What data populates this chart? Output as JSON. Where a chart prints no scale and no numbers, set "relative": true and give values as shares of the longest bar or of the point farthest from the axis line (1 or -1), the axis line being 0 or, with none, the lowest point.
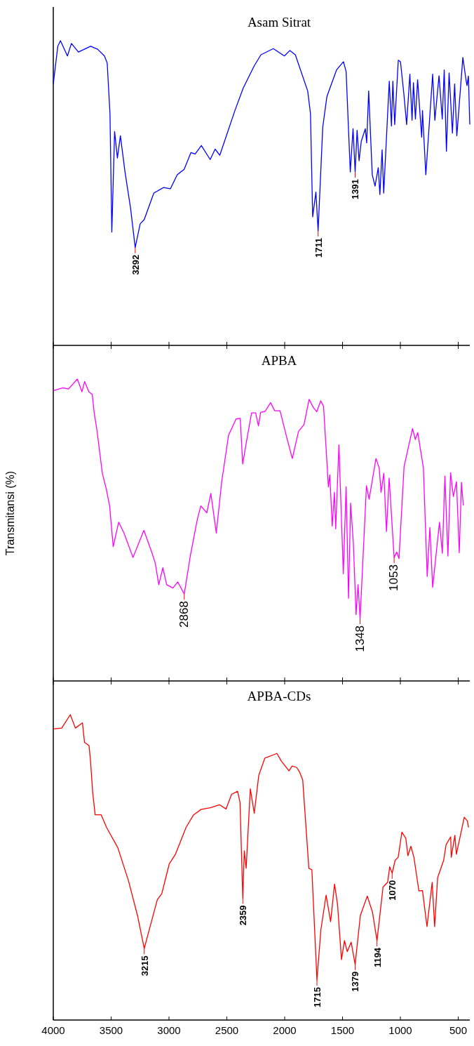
{
  "chart_data": [
    {
      "type": "line",
      "title": "Asam Sitrat",
      "relative": true,
      "xlim": [
        4000,
        400
      ],
      "xticks": [
        4000,
        3500,
        3000,
        2500,
        2000,
        1500,
        1000,
        500
      ],
      "tick_labels": false,
      "x": [
        4000,
        3961,
        3938,
        3878,
        3843,
        3783,
        3677,
        3617,
        3558,
        3534,
        3510,
        3494,
        3470,
        3446,
        3420,
        3380,
        3332,
        3292,
        3249,
        3214,
        3131,
        3047,
        2988,
        2929,
        2869,
        2810,
        2774,
        2720,
        2644,
        2601,
        2561,
        2430,
        2359,
        2264,
        2205,
        2098,
        2003,
        1955,
        1908,
        1801,
        1777,
        1758,
        1730,
        1711,
        1671,
        1635,
        1552,
        1492,
        1469,
        1433,
        1409,
        1391,
        1374,
        1357,
        1338,
        1303,
        1291,
        1274,
        1243,
        1219,
        1191,
        1177,
        1158,
        1144,
        1096,
        1077,
        1065,
        1049,
        1018,
        999,
        970,
        946,
        918,
        899,
        887,
        870,
        851,
        816,
        809,
        780,
        721,
        702,
        666,
        638,
        621,
        602,
        579,
        550,
        531,
        512,
        460,
        431,
        424,
        412,
        400
      ],
      "series": [
        {
          "color": "#0000ff",
          "values": [
            0.858,
            0.982,
            1.0,
            0.95,
            0.991,
            0.963,
            0.982,
            0.972,
            0.95,
            0.927,
            0.761,
            0.372,
            0.702,
            0.615,
            0.688,
            0.569,
            0.45,
            0.321,
            0.399,
            0.413,
            0.5,
            0.518,
            0.514,
            0.56,
            0.578,
            0.633,
            0.628,
            0.656,
            0.61,
            0.644,
            0.624,
            0.771,
            0.844,
            0.917,
            0.954,
            0.974,
            0.95,
            0.968,
            0.954,
            0.835,
            0.761,
            0.422,
            0.503,
            0.376,
            0.716,
            0.817,
            0.904,
            0.931,
            0.899,
            0.569,
            0.711,
            0.569,
            0.706,
            0.606,
            0.67,
            0.711,
            0.665,
            0.835,
            0.56,
            0.523,
            0.583,
            0.495,
            0.642,
            0.5,
            0.867,
            0.72,
            0.867,
            0.725,
            0.936,
            0.931,
            0.826,
            0.725,
            0.89,
            0.739,
            0.862,
            0.743,
            0.872,
            0.683,
            0.771,
            0.56,
            0.89,
            0.739,
            0.885,
            0.743,
            0.904,
            0.637,
            0.894,
            0.697,
            0.858,
            0.688,
            0.945,
            0.867,
            0.853,
            0.884,
            0.725
          ]
        }
      ],
      "annotations": [
        {
          "text": "3292",
          "x": 3292,
          "y": 0.321
        },
        {
          "text": "1711",
          "x": 1711,
          "y": 0.376
        },
        {
          "text": "1391",
          "x": 1391,
          "y": 0.569
        }
      ]
    },
    {
      "type": "line",
      "title": "APBA",
      "ylabel": "Transmitansi (%)",
      "relative": true,
      "xlim": [
        4000,
        400
      ],
      "xticks": [
        4000,
        3500,
        3000,
        2500,
        2000,
        1500,
        1000,
        500
      ],
      "tick_labels": false,
      "x": [
        3998,
        3916,
        3869,
        3792,
        3752,
        3729,
        3693,
        3663,
        3647,
        3623,
        3576,
        3541,
        3513,
        3482,
        3435,
        3389,
        3311,
        3217,
        3154,
        3119,
        3088,
        3053,
        3020,
        2966,
        2924,
        2868,
        2814,
        2755,
        2725,
        2673,
        2638,
        2591,
        2544,
        2485,
        2420,
        2384,
        2363,
        2333,
        2286,
        2251,
        2227,
        2208,
        2169,
        2122,
        2086,
        2040,
        1981,
        1934,
        1880,
        1833,
        1789,
        1753,
        1723,
        1688,
        1664,
        1622,
        1610,
        1589,
        1570,
        1559,
        1531,
        1493,
        1469,
        1448,
        1430,
        1406,
        1383,
        1366,
        1348,
        1293,
        1270,
        1211,
        1183,
        1167,
        1143,
        1120,
        1097,
        1054,
        1031,
        1012,
        968,
        895,
        871,
        850,
        801,
        768,
        745,
        721,
        662,
        637,
        615,
        589,
        566,
        542,
        515,
        491,
        472,
        456
      ],
      "series": [
        {
          "color": "#ff00ff",
          "values": [
            0.962,
            0.971,
            0.967,
            1.0,
            0.958,
            0.992,
            0.958,
            0.949,
            0.89,
            0.832,
            0.688,
            0.634,
            0.58,
            0.445,
            0.526,
            0.49,
            0.409,
            0.499,
            0.432,
            0.391,
            0.319,
            0.375,
            0.319,
            0.308,
            0.328,
            0.288,
            0.418,
            0.535,
            0.58,
            0.557,
            0.621,
            0.49,
            0.661,
            0.814,
            0.868,
            0.87,
            0.719,
            0.787,
            0.888,
            0.888,
            0.845,
            0.89,
            0.893,
            0.922,
            0.895,
            0.895,
            0.805,
            0.737,
            0.827,
            0.849,
            0.933,
            0.906,
            0.892,
            0.928,
            0.91,
            0.643,
            0.683,
            0.513,
            0.625,
            0.504,
            0.782,
            0.355,
            0.643,
            0.274,
            0.589,
            0.454,
            0.22,
            0.319,
            0.207,
            0.647,
            0.602,
            0.737,
            0.706,
            0.625,
            0.688,
            0.495,
            0.672,
            0.409,
            0.427,
            0.405,
            0.71,
            0.836,
            0.8,
            0.823,
            0.706,
            0.346,
            0.508,
            0.31,
            0.526,
            0.423,
            0.679,
            0.414,
            0.69,
            0.611,
            0.66,
            0.425,
            0.658,
            0.581
          ]
        }
      ],
      "annotations": [
        {
          "text": "2868",
          "x": 2868,
          "y": 0.288
        },
        {
          "text": "1348",
          "x": 1348,
          "y": 0.207
        },
        {
          "text": "1053",
          "x": 1054,
          "y": 0.409
        }
      ]
    },
    {
      "type": "line",
      "title": "APBA-CDs",
      "relative": true,
      "xlim": [
        4000,
        400
      ],
      "xticks": [
        4000,
        3500,
        3000,
        2500,
        2000,
        1500,
        1000,
        500
      ],
      "tick_labels": "x",
      "x": [
        4000,
        3927,
        3853,
        3809,
        3748,
        3730,
        3691,
        3678,
        3659,
        3638,
        3586,
        3540,
        3442,
        3350,
        3272,
        3214,
        3167,
        3101,
        3062,
        2997,
        2944,
        2852,
        2787,
        2721,
        2643,
        2564,
        2507,
        2459,
        2407,
        2386,
        2362,
        2349,
        2333,
        2297,
        2263,
        2224,
        2171,
        2067,
        2027,
        1962,
        1936,
        1896,
        1870,
        1844,
        1791,
        1765,
        1721,
        1687,
        1642,
        1603,
        1569,
        1543,
        1509,
        1483,
        1459,
        1425,
        1391,
        1346,
        1286,
        1241,
        1202,
        1150,
        1110,
        1092,
        1071,
        1045,
        1019,
        987,
        953,
        935,
        909,
        883,
        840,
        809,
        770,
        725,
        704,
        678,
        626,
        605,
        565,
        560,
        529,
        516,
        469,
        448,
        421,
        411
      ],
      "series": [
        {
          "color": "#ff0000",
          "values": [
            0.953,
            0.956,
            1.0,
            0.956,
            0.973,
            0.909,
            0.899,
            0.847,
            0.744,
            0.672,
            0.672,
            0.631,
            0.564,
            0.456,
            0.342,
            0.234,
            0.301,
            0.394,
            0.414,
            0.512,
            0.543,
            0.631,
            0.672,
            0.69,
            0.695,
            0.705,
            0.691,
            0.739,
            0.749,
            0.713,
            0.399,
            0.554,
            0.497,
            0.757,
            0.677,
            0.801,
            0.858,
            0.873,
            0.847,
            0.816,
            0.832,
            0.827,
            0.811,
            0.786,
            0.497,
            0.492,
            0.131,
            0.296,
            0.409,
            0.322,
            0.445,
            0.378,
            0.198,
            0.26,
            0.224,
            0.255,
            0.182,
            0.342,
            0.406,
            0.353,
            0.26,
            0.435,
            0.451,
            0.502,
            0.481,
            0.523,
            0.533,
            0.615,
            0.595,
            0.538,
            0.569,
            0.533,
            0.423,
            0.424,
            0.306,
            0.451,
            0.306,
            0.466,
            0.523,
            0.574,
            0.6,
            0.533,
            0.605,
            0.543,
            0.626,
            0.664,
            0.652,
            0.631
          ]
        }
      ],
      "annotations": [
        {
          "text": "3215",
          "x": 3214,
          "y": 0.234
        },
        {
          "text": "2359",
          "x": 2362,
          "y": 0.399
        },
        {
          "text": "1715",
          "x": 1721,
          "y": 0.131
        },
        {
          "text": "1379",
          "x": 1391,
          "y": 0.182
        },
        {
          "text": "1194",
          "x": 1202,
          "y": 0.26
        },
        {
          "text": "1070",
          "x": 1071,
          "y": 0.481
        }
      ]
    }
  ]
}
